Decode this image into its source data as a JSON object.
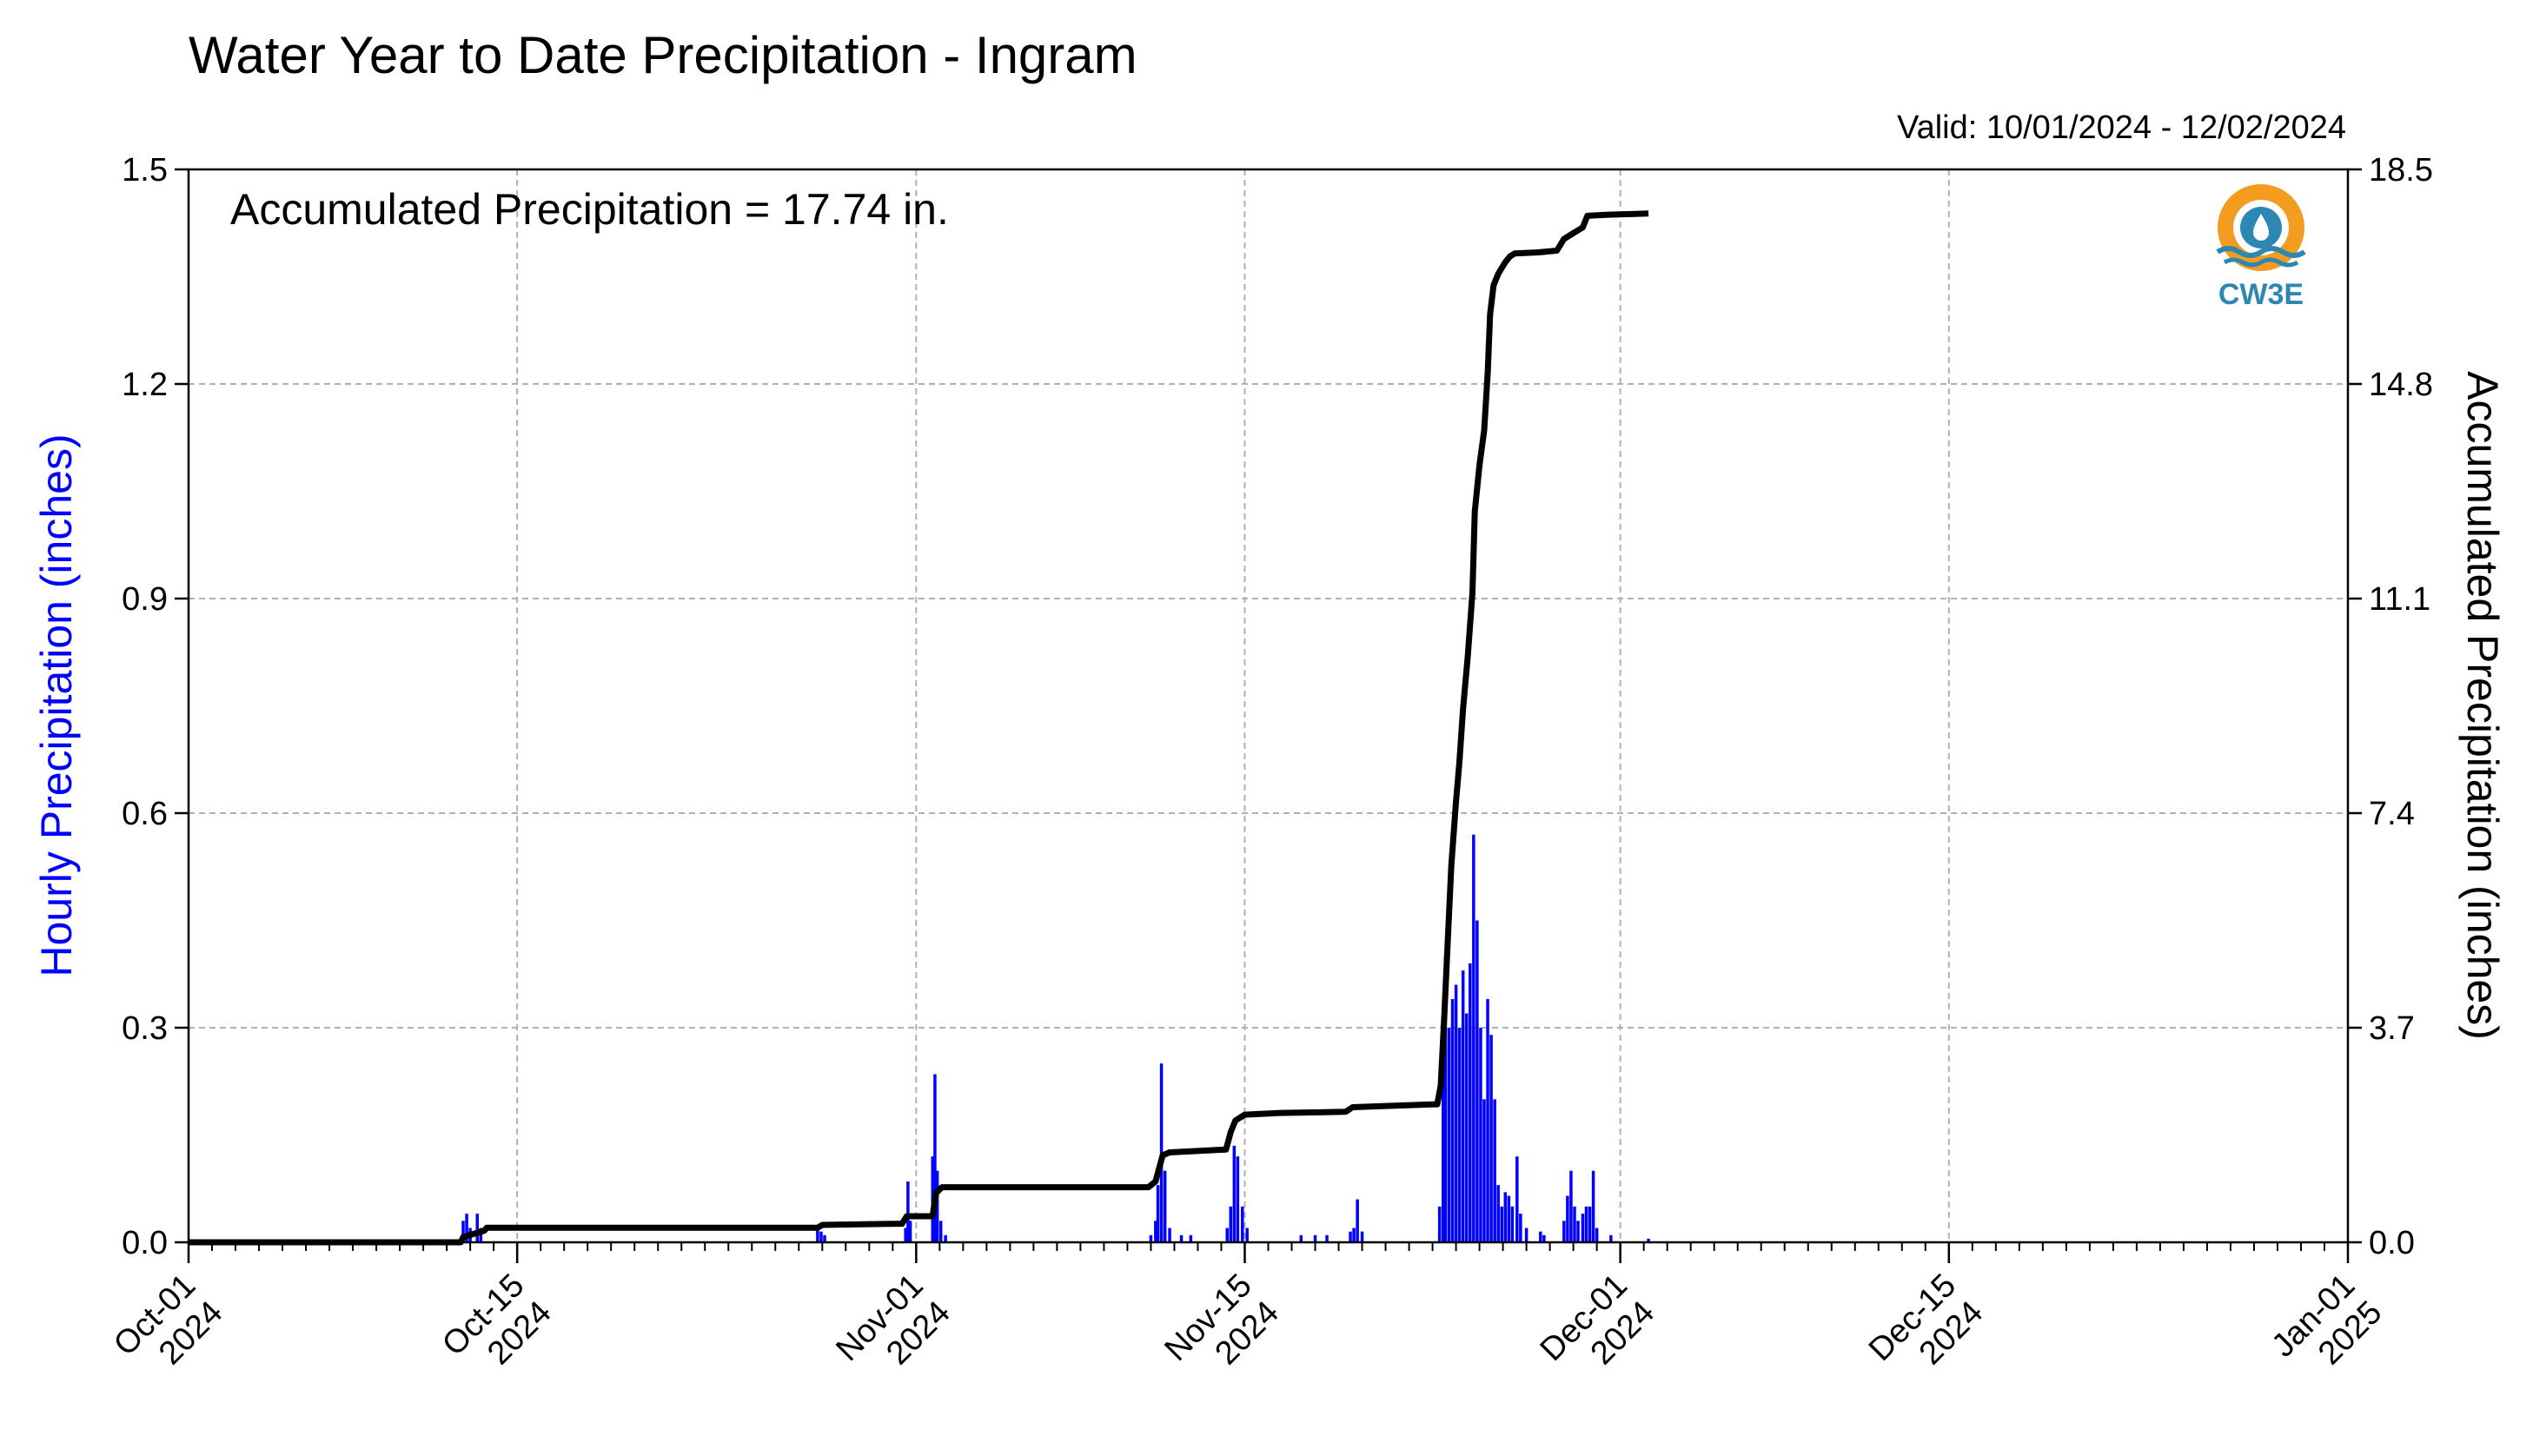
{
  "chart_data": {
    "type": "bar+line",
    "title": "Water Year to Date Precipitation - Ingram",
    "valid_label": "Valid: 10/01/2024 - 12/02/2024",
    "annotation": "Accumulated Precipitation = 17.74 in.",
    "logo_text": "CW3E",
    "ylabel_left": "Hourly Precipitation (inches)",
    "ylabel_right": "Accumulated Precipitation (inches)",
    "y_left_ticks": [
      "0.0",
      "0.3",
      "0.6",
      "0.9",
      "1.2",
      "1.5"
    ],
    "y_right_ticks": [
      "0.0",
      "3.7",
      "7.4",
      "11.1",
      "14.8",
      "18.5"
    ],
    "ylim_left": [
      0,
      1.5
    ],
    "ylim_right": [
      0,
      18.5
    ],
    "xlim_days": [
      0,
      92
    ],
    "x_ticks": [
      {
        "day": 0,
        "line1": "Oct-01",
        "line2": "2024"
      },
      {
        "day": 14,
        "line1": "Oct-15",
        "line2": "2024"
      },
      {
        "day": 31,
        "line1": "Nov-01",
        "line2": "2024"
      },
      {
        "day": 45,
        "line1": "Nov-15",
        "line2": "2024"
      },
      {
        "day": 61,
        "line1": "Dec-01",
        "line2": "2024"
      },
      {
        "day": 75,
        "line1": "Dec-15",
        "line2": "2024"
      },
      {
        "day": 92,
        "line1": "Jan-01",
        "line2": "2025"
      }
    ],
    "grid": true,
    "colors": {
      "hourly": "#0000ff",
      "accumulated": "#000000",
      "grid": "#b0b0b0",
      "left_label": "#0000ff",
      "logo_orange": "#f39c1f",
      "logo_blue": "#2e86b3"
    },
    "hourly_series": {
      "name": "Hourly Precipitation",
      "points": [
        [
          11.7,
          0.03
        ],
        [
          11.85,
          0.04
        ],
        [
          12.0,
          0.02
        ],
        [
          12.3,
          0.04
        ],
        [
          12.45,
          0.02
        ],
        [
          26.8,
          0.02
        ],
        [
          26.95,
          0.015
        ],
        [
          27.1,
          0.01
        ],
        [
          30.55,
          0.02
        ],
        [
          30.65,
          0.085
        ],
        [
          30.75,
          0.03
        ],
        [
          31.7,
          0.12
        ],
        [
          31.8,
          0.235
        ],
        [
          31.9,
          0.1
        ],
        [
          32.05,
          0.03
        ],
        [
          32.25,
          0.01
        ],
        [
          41.0,
          0.01
        ],
        [
          41.2,
          0.03
        ],
        [
          41.3,
          0.08
        ],
        [
          41.45,
          0.25
        ],
        [
          41.6,
          0.1
        ],
        [
          41.8,
          0.02
        ],
        [
          42.3,
          0.01
        ],
        [
          42.7,
          0.01
        ],
        [
          44.25,
          0.02
        ],
        [
          44.4,
          0.05
        ],
        [
          44.55,
          0.135
        ],
        [
          44.7,
          0.12
        ],
        [
          44.9,
          0.05
        ],
        [
          45.1,
          0.02
        ],
        [
          47.4,
          0.01
        ],
        [
          48.0,
          0.01
        ],
        [
          48.5,
          0.01
        ],
        [
          49.5,
          0.015
        ],
        [
          49.65,
          0.02
        ],
        [
          49.8,
          0.06
        ],
        [
          50.0,
          0.015
        ],
        [
          53.3,
          0.05
        ],
        [
          53.45,
          0.32
        ],
        [
          53.55,
          0.4
        ],
        [
          53.7,
          0.3
        ],
        [
          53.85,
          0.34
        ],
        [
          54.0,
          0.36
        ],
        [
          54.15,
          0.3
        ],
        [
          54.3,
          0.38
        ],
        [
          54.45,
          0.32
        ],
        [
          54.6,
          0.39
        ],
        [
          54.75,
          0.57
        ],
        [
          54.9,
          0.45
        ],
        [
          55.05,
          0.3
        ],
        [
          55.2,
          0.2
        ],
        [
          55.35,
          0.34
        ],
        [
          55.5,
          0.29
        ],
        [
          55.65,
          0.2
        ],
        [
          55.8,
          0.08
        ],
        [
          55.95,
          0.05
        ],
        [
          56.1,
          0.07
        ],
        [
          56.25,
          0.065
        ],
        [
          56.4,
          0.05
        ],
        [
          56.6,
          0.12
        ],
        [
          56.75,
          0.04
        ],
        [
          57.0,
          0.02
        ],
        [
          57.6,
          0.015
        ],
        [
          57.75,
          0.01
        ],
        [
          58.6,
          0.03
        ],
        [
          58.75,
          0.065
        ],
        [
          58.9,
          0.1
        ],
        [
          59.05,
          0.05
        ],
        [
          59.2,
          0.03
        ],
        [
          59.4,
          0.04
        ],
        [
          59.55,
          0.05
        ],
        [
          59.7,
          0.05
        ],
        [
          59.85,
          0.1
        ],
        [
          60.0,
          0.02
        ],
        [
          60.6,
          0.01
        ],
        [
          62.2,
          0.005
        ]
      ]
    },
    "accumulated_series": {
      "name": "Accumulated Precipitation",
      "points": [
        [
          0,
          0
        ],
        [
          11.6,
          0
        ],
        [
          11.7,
          0.09
        ],
        [
          12.6,
          0.2
        ],
        [
          12.7,
          0.25
        ],
        [
          26.8,
          0.25
        ],
        [
          27.0,
          0.3
        ],
        [
          30.4,
          0.32
        ],
        [
          30.6,
          0.45
        ],
        [
          31.7,
          0.45
        ],
        [
          31.85,
          0.85
        ],
        [
          32.1,
          0.95
        ],
        [
          40.9,
          0.95
        ],
        [
          41.2,
          1.05
        ],
        [
          41.5,
          1.5
        ],
        [
          41.8,
          1.55
        ],
        [
          44.2,
          1.6
        ],
        [
          44.4,
          1.9
        ],
        [
          44.6,
          2.1
        ],
        [
          45.0,
          2.2
        ],
        [
          46.5,
          2.23
        ],
        [
          49.3,
          2.25
        ],
        [
          49.6,
          2.33
        ],
        [
          51.0,
          2.35
        ],
        [
          53.2,
          2.38
        ],
        [
          53.35,
          2.7
        ],
        [
          53.5,
          3.9
        ],
        [
          53.65,
          5.2
        ],
        [
          53.8,
          6.5
        ],
        [
          54.0,
          7.6
        ],
        [
          54.15,
          8.3
        ],
        [
          54.3,
          9.2
        ],
        [
          54.5,
          10.1
        ],
        [
          54.7,
          11.2
        ],
        [
          54.8,
          12.6
        ],
        [
          55.0,
          13.4
        ],
        [
          55.2,
          14.0
        ],
        [
          55.35,
          15.0
        ],
        [
          55.45,
          16.0
        ],
        [
          55.6,
          16.5
        ],
        [
          55.8,
          16.7
        ],
        [
          56.1,
          16.9
        ],
        [
          56.3,
          17.0
        ],
        [
          56.5,
          17.05
        ],
        [
          57.5,
          17.07
        ],
        [
          58.3,
          17.1
        ],
        [
          58.6,
          17.3
        ],
        [
          59.0,
          17.4
        ],
        [
          59.4,
          17.5
        ],
        [
          59.6,
          17.7
        ],
        [
          60.5,
          17.72
        ],
        [
          61.5,
          17.73
        ],
        [
          62.2,
          17.74
        ]
      ]
    }
  }
}
